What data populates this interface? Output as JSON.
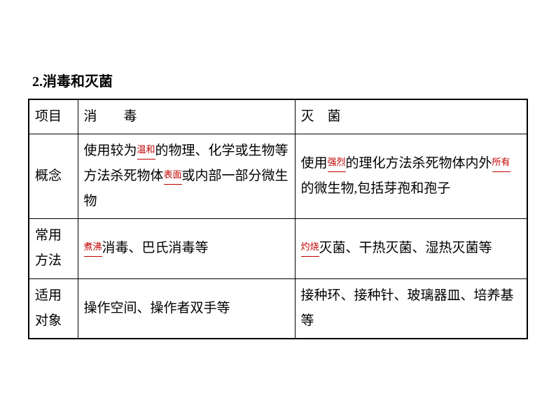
{
  "heading": "2.消毒和灭菌",
  "table": {
    "columns": [
      "项目",
      "消　　毒",
      "灭　菌"
    ],
    "rows": [
      {
        "label": "概念",
        "col2_parts": [
          "使用较为",
          "的物理、化学或生物等方法杀死物体",
          "或内部一部分微生物"
        ],
        "col2_blanks": [
          "温和",
          "表面"
        ],
        "col3_parts": [
          "使用",
          "的理化方法杀死物体内外",
          "的微生物,包括芽孢和孢子"
        ],
        "col3_blanks": [
          "强烈",
          "所有"
        ]
      },
      {
        "label": "常用方法",
        "col2_parts": [
          "",
          "消毒、巴氏消毒等"
        ],
        "col2_blanks": [
          "煮沸"
        ],
        "col3_parts": [
          "",
          "灭菌、干热灭菌、湿热灭菌等"
        ],
        "col3_blanks": [
          "灼烧"
        ]
      },
      {
        "label": "适用对象",
        "col2": "操作空间、操作者双手等",
        "col3": "接种环、接种针、玻璃器皿、培养基等"
      }
    ]
  },
  "styling": {
    "background_color": "#ffffff",
    "text_color": "#000000",
    "blank_color": "#c00000",
    "border_color": "#000000",
    "font_family": "SimSun",
    "heading_fontsize": 20,
    "cell_fontsize": 19,
    "blank_fontsize": 13,
    "line_height": 1.9
  }
}
